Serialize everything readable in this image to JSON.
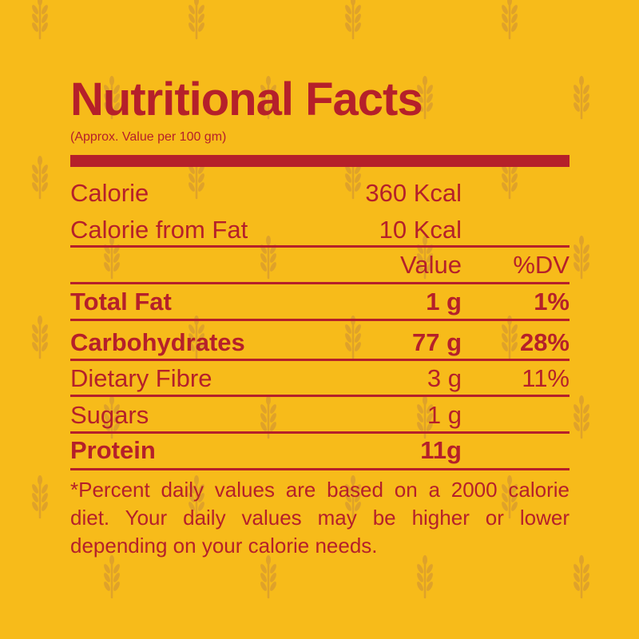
{
  "title": "Nutritional Facts",
  "subtitle": "(Approx. Value per 100 gm)",
  "calorie_rows": [
    {
      "label": "Calorie",
      "value": "360 Kcal"
    },
    {
      "label": "Calorie from Fat",
      "value": "10 Kcal"
    }
  ],
  "header": {
    "value": "Value",
    "dv": "%DV"
  },
  "nutrients": [
    {
      "label": "Total Fat",
      "value": "1 g",
      "dv": "1%",
      "bold": true
    },
    {
      "label": "Carbohydrates",
      "value": "77 g",
      "dv": "28%",
      "bold": true
    },
    {
      "label": "Dietary Fibre",
      "value": "3 g",
      "dv": "11%",
      "bold": false
    },
    {
      "label": "Sugars",
      "value": "1 g",
      "dv": "",
      "bold": false
    },
    {
      "label": "Protein",
      "value": "11g",
      "dv": "",
      "bold": true
    }
  ],
  "footnote": "*Percent daily values are based on a 2000 calorie diet. Your daily values may be higher or lower depending on your calorie needs.",
  "colors": {
    "background": "#f7bb1a",
    "text": "#b5202a",
    "wheat": "#dfa22a"
  },
  "background_icon": "wheat-icon"
}
